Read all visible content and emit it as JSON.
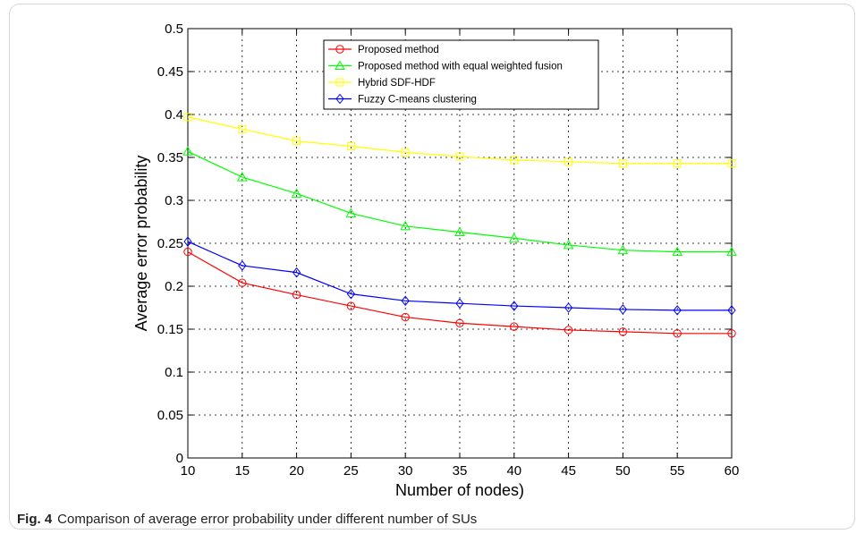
{
  "caption": {
    "label": "Fig. 4",
    "text": "Comparison of average error probability under different number of SUs"
  },
  "chart_data": {
    "type": "line",
    "title": "",
    "xlabel": "Number of nodes)",
    "ylabel": "Average error probability",
    "xlim": [
      10,
      60
    ],
    "ylim": [
      0,
      0.5
    ],
    "x": [
      10,
      15,
      20,
      25,
      30,
      35,
      40,
      45,
      50,
      55,
      60
    ],
    "x_tick_labels": [
      "10",
      "15",
      "20",
      "25",
      "30",
      "35",
      "40",
      "45",
      "50",
      "55",
      "60"
    ],
    "y_ticks": [
      0,
      0.05,
      0.1,
      0.15,
      0.2,
      0.25,
      0.3,
      0.35,
      0.4,
      0.45,
      0.5
    ],
    "y_tick_labels": [
      "0",
      "0.05",
      "0.1",
      "0.15",
      "0.2",
      "0.25",
      "0.3",
      "0.35",
      "0.4",
      "0.45",
      "0.5"
    ],
    "grid": true,
    "legend_position": "top-center",
    "series": [
      {
        "name": "Proposed method",
        "color": "#ff0000",
        "marker": "circle",
        "values": [
          0.24,
          0.204,
          0.19,
          0.177,
          0.164,
          0.157,
          0.153,
          0.149,
          0.147,
          0.145,
          0.145
        ]
      },
      {
        "name": "Proposed method with equal weighted fusion",
        "color": "#00ff00",
        "marker": "triangle",
        "values": [
          0.357,
          0.327,
          0.308,
          0.285,
          0.27,
          0.263,
          0.256,
          0.248,
          0.242,
          0.24,
          0.24
        ]
      },
      {
        "name": "Hybrid SDF-HDF",
        "color": "#ffff00",
        "marker": "square",
        "values": [
          0.397,
          0.383,
          0.369,
          0.363,
          0.356,
          0.351,
          0.347,
          0.345,
          0.343,
          0.343,
          0.343
        ]
      },
      {
        "name": "Fuzzy C-means clustering",
        "color": "#0000ff",
        "marker": "diamond",
        "values": [
          0.252,
          0.224,
          0.216,
          0.191,
          0.183,
          0.18,
          0.177,
          0.175,
          0.173,
          0.172,
          0.172
        ]
      }
    ]
  }
}
